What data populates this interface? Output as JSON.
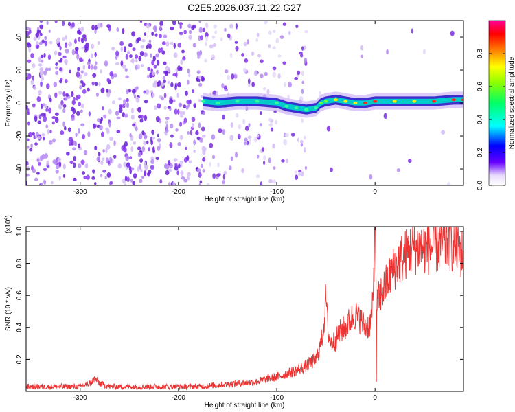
{
  "title": "C2E5.2026.037.11.22.G27",
  "colors": {
    "snr_line": "#ee3333",
    "spec_bg_dark": "#6a1fd8",
    "spec_bg_light": "#d9c4f5",
    "colormap": [
      "#ffffff",
      "#6600ff",
      "#0000ff",
      "#00ffff",
      "#00ff00",
      "#ffff00",
      "#ff0000",
      "#ff00aa"
    ]
  },
  "chart_data": [
    {
      "type": "heatmap",
      "xlabel": "Height of straight line (km)",
      "ylabel": "Frequency (Hz)",
      "xlim": [
        -355,
        90
      ],
      "ylim": [
        -50,
        50
      ],
      "xticks": [
        -300,
        -200,
        -100,
        0
      ],
      "xtick_labels": [
        "-300",
        "-200",
        "-100",
        "0"
      ],
      "yticks": [
        -40,
        -20,
        0,
        20,
        40
      ],
      "ytick_labels": [
        "-40",
        "-20",
        "0",
        "20",
        "40"
      ],
      "grid": false,
      "colorbar": {
        "label": "Normalized spectral amplitude",
        "range": [
          0,
          1
        ],
        "ticks": [
          0,
          0.2,
          0.4,
          0.6,
          0.8
        ],
        "tick_labels": [
          "0.0",
          "0.2",
          "0.4",
          "0.6",
          "0.8"
        ]
      },
      "signal_ridge": {
        "x": [
          -175,
          -160,
          -140,
          -120,
          -100,
          -90,
          -80,
          -70,
          -60,
          -55,
          -50,
          -40,
          -30,
          -20,
          -10,
          0,
          20,
          40,
          60,
          80,
          90
        ],
        "frequency": [
          1,
          0,
          1,
          1,
          0,
          -2,
          -3,
          -4,
          -3,
          0,
          1,
          2,
          1,
          0,
          0,
          1,
          1,
          1,
          1,
          2,
          2
        ],
        "amplitude": [
          0.3,
          0.35,
          0.4,
          0.35,
          0.4,
          0.35,
          0.45,
          0.5,
          0.55,
          0.65,
          0.7,
          0.75,
          0.75,
          0.8,
          0.85,
          0.85,
          0.8,
          0.8,
          0.85,
          0.9,
          0.9
        ]
      }
    },
    {
      "type": "line",
      "xlabel": "Height of straight line (km)",
      "ylabel": "SNR (10 * v/v)",
      "y_multiplier": "(x10",
      "y_multiplier_exp": "4",
      "y_multiplier_close": ")",
      "xlim": [
        -355,
        90
      ],
      "ylim": [
        0,
        1.03
      ],
      "xticks": [
        -300,
        -200,
        -100,
        0
      ],
      "xtick_labels": [
        "-300",
        "-200",
        "-100",
        "0"
      ],
      "yticks": [
        0.2,
        0.4,
        0.6,
        0.8,
        1.0
      ],
      "ytick_labels": [
        "0.2",
        "0.4",
        "0.6",
        "0.8",
        "1.0"
      ],
      "grid": false,
      "series": [
        {
          "x": [
            -355,
            -340,
            -320,
            -300,
            -290,
            -285,
            -280,
            -270,
            -250,
            -230,
            -200,
            -180,
            -160,
            -140,
            -120,
            -110,
            -100,
            -90,
            -80,
            -70,
            -60,
            -55,
            -52,
            -50,
            -48,
            -45,
            -40,
            -35,
            -30,
            -25,
            -20,
            -15,
            -10,
            -5,
            -2,
            0,
            1,
            2,
            5,
            10,
            15,
            20,
            25,
            30,
            35,
            40,
            50,
            60,
            70,
            80,
            90
          ],
          "values": [
            0.03,
            0.03,
            0.03,
            0.03,
            0.05,
            0.08,
            0.05,
            0.03,
            0.03,
            0.03,
            0.03,
            0.03,
            0.04,
            0.05,
            0.06,
            0.08,
            0.09,
            0.11,
            0.13,
            0.16,
            0.2,
            0.3,
            0.42,
            0.6,
            0.38,
            0.3,
            0.32,
            0.38,
            0.4,
            0.45,
            0.48,
            0.45,
            0.4,
            0.42,
            0.55,
            1.03,
            0.6,
            0.55,
            0.6,
            0.65,
            0.72,
            0.78,
            0.82,
            0.85,
            0.88,
            0.9,
            0.9,
            0.9,
            0.92,
            0.92,
            0.85
          ]
        }
      ]
    }
  ]
}
